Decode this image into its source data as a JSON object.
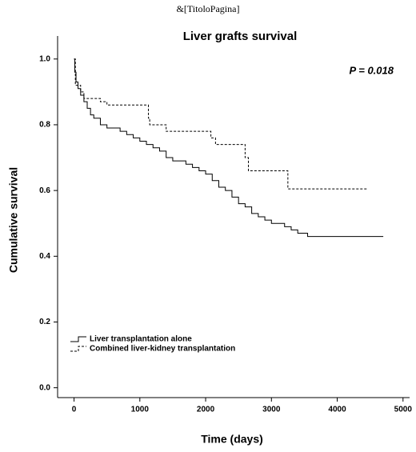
{
  "header": "&[TitoloPagina]",
  "chart_data": {
    "type": "line",
    "step": true,
    "title": "Liver grafts survival",
    "annotation": "P = 0.018",
    "xlabel": "Time (days)",
    "ylabel": "Cumulative survival",
    "xlim": [
      -250,
      5100
    ],
    "ylim": [
      -0.03,
      1.07
    ],
    "xticks": [
      0,
      1000,
      2000,
      3000,
      4000,
      5000
    ],
    "yticks": [
      {
        "value": 0,
        "label": "0.0"
      },
      0.2,
      0.4,
      0.6,
      0.8,
      {
        "value": 1,
        "label": "1.0"
      }
    ],
    "legend": "lower left",
    "series": [
      {
        "name": "Liver transplantation alone",
        "color": "#000000",
        "dash": false,
        "x": [
          0,
          10,
          30,
          60,
          100,
          150,
          200,
          250,
          300,
          400,
          500,
          700,
          800,
          900,
          1000,
          1100,
          1200,
          1300,
          1400,
          1500,
          1700,
          1800,
          1900,
          2000,
          2100,
          2200,
          2300,
          2400,
          2500,
          2600,
          2700,
          2800,
          2900,
          3000,
          3200,
          3300,
          3400,
          3550,
          4700
        ],
        "values": [
          1.0,
          0.96,
          0.93,
          0.91,
          0.89,
          0.87,
          0.85,
          0.83,
          0.82,
          0.8,
          0.79,
          0.78,
          0.77,
          0.76,
          0.75,
          0.74,
          0.73,
          0.72,
          0.7,
          0.69,
          0.68,
          0.67,
          0.66,
          0.65,
          0.63,
          0.61,
          0.6,
          0.58,
          0.56,
          0.55,
          0.53,
          0.52,
          0.51,
          0.5,
          0.49,
          0.48,
          0.47,
          0.46,
          0.46
        ]
      },
      {
        "name": "Combined liver-kidney transplantation",
        "color": "#000000",
        "dash": true,
        "x": [
          0,
          20,
          100,
          150,
          400,
          500,
          1130,
          1150,
          1400,
          2080,
          2150,
          2600,
          2650,
          3250,
          4450
        ],
        "values": [
          1.0,
          0.92,
          0.9,
          0.88,
          0.87,
          0.86,
          0.82,
          0.8,
          0.78,
          0.76,
          0.74,
          0.7,
          0.66,
          0.605,
          0.605
        ]
      }
    ]
  }
}
